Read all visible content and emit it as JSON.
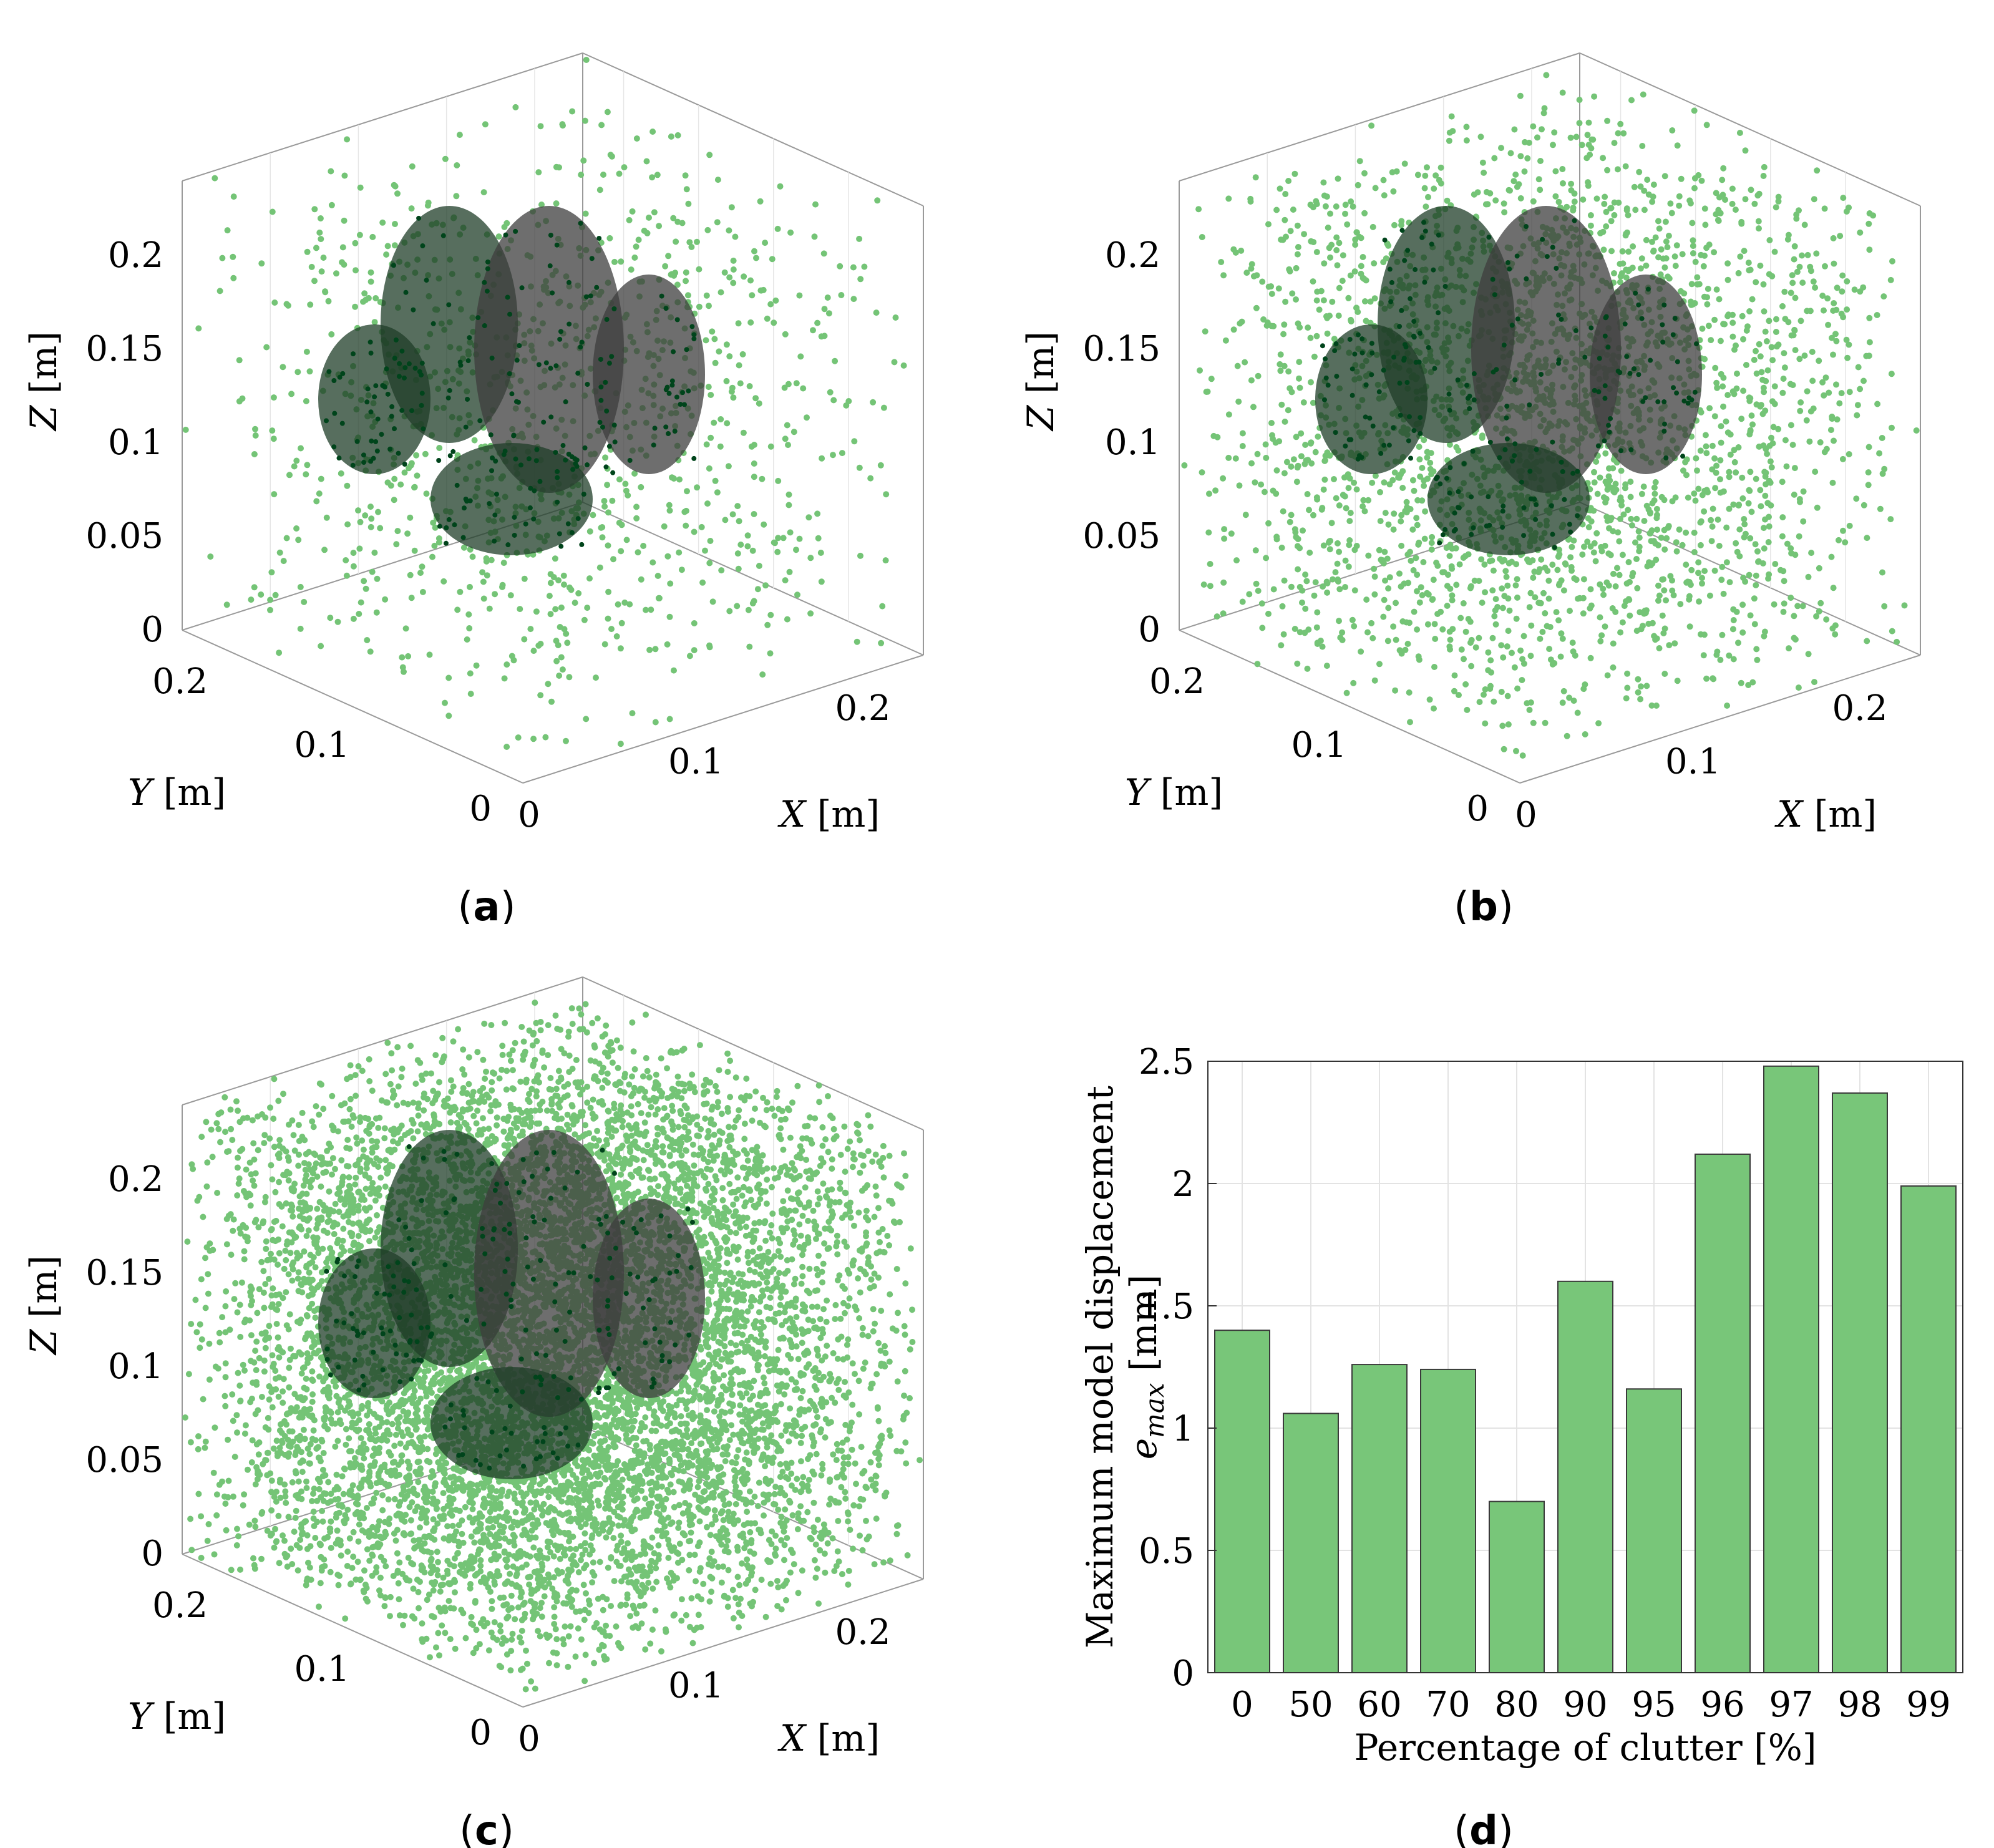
{
  "panels": [
    {
      "id": "a",
      "label": "a",
      "x_label": "X",
      "y_label": "Y",
      "z_label": "Z",
      "unit": "[m]",
      "x_ticks": [
        "0",
        "0.1",
        "0.2"
      ],
      "y_ticks": [
        "0",
        "0.1",
        "0.2"
      ],
      "z_ticks": [
        "0",
        "0.05",
        "0.1",
        "0.15",
        "0.2"
      ],
      "clutter_density": "low"
    },
    {
      "id": "b",
      "label": "b",
      "x_label": "X",
      "y_label": "Y",
      "z_label": "Z",
      "unit": "[m]",
      "x_ticks": [
        "0",
        "0.1",
        "0.2"
      ],
      "y_ticks": [
        "0",
        "0.1",
        "0.2"
      ],
      "z_ticks": [
        "0",
        "0.05",
        "0.1",
        "0.15",
        "0.2"
      ],
      "clutter_density": "medium"
    },
    {
      "id": "c",
      "label": "c",
      "x_label": "X",
      "y_label": "Y",
      "z_label": "Z",
      "unit": "[m]",
      "x_ticks": [
        "0",
        "0.1",
        "0.2"
      ],
      "y_ticks": [
        "0",
        "0.1",
        "0.2"
      ],
      "z_ticks": [
        "0",
        "0.05",
        "0.1",
        "0.15",
        "0.2"
      ],
      "clutter_density": "high"
    }
  ],
  "colors": {
    "clutter": "#74c476",
    "model_dark": "#00441b",
    "bar_fill": "#78c679",
    "bar_edge": "#3a3a3a"
  },
  "chart_data": {
    "type": "bar",
    "panel_label": "d",
    "categories": [
      "0",
      "50",
      "60",
      "70",
      "80",
      "90",
      "95",
      "96",
      "97",
      "98",
      "99"
    ],
    "values": [
      1.4,
      1.06,
      1.26,
      1.24,
      0.7,
      1.6,
      1.16,
      2.12,
      2.48,
      2.37,
      1.99
    ],
    "xlabel": "Percentage of clutter [%]",
    "ylabel_line1": "Maximum model displacement",
    "ylabel_sym": "e",
    "ylabel_sub": "max",
    "ylabel_unit": "[mm]",
    "ylim": [
      0,
      2.5
    ],
    "yticks": [
      "0",
      "0.5",
      "1",
      "1.5",
      "2",
      "2.5"
    ],
    "grid": true
  }
}
